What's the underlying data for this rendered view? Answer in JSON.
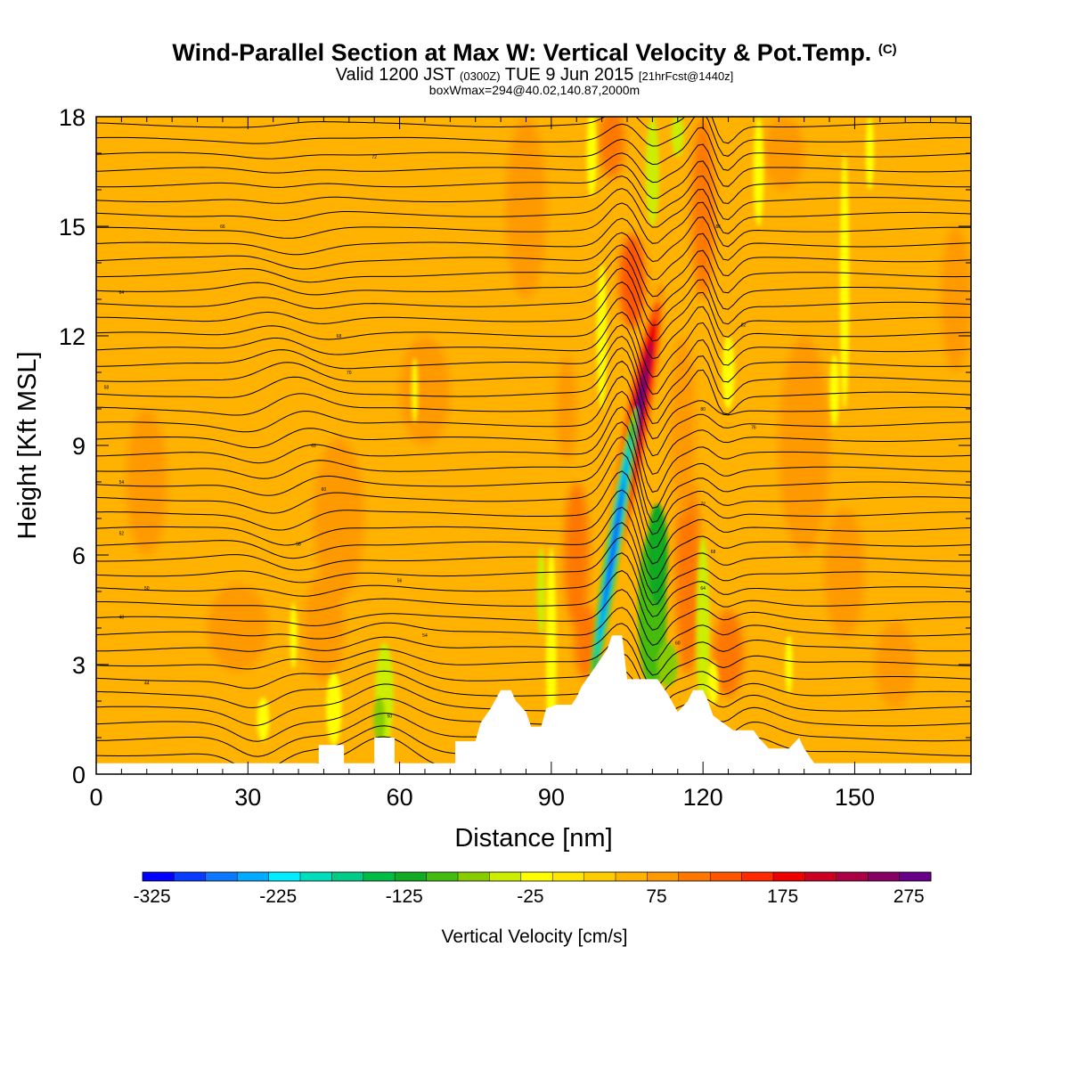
{
  "title": {
    "main": "Wind-Parallel Section at Max W: Vertical Velocity & Pot.Temp.",
    "main_suffix": "(C)",
    "valid_prefix": "Valid 1200 JST",
    "valid_utc": "(0300Z)",
    "valid_date": "TUE 9 Jun 2015",
    "valid_fcst": "[21hrFcst@1440z]",
    "box_info": "boxWmax=294@40.02,140.87,2000m"
  },
  "chart_data": {
    "type": "heatmap",
    "xlabel": "Distance [nm]",
    "ylabel": "Height [Kft MSL]",
    "xlim": [
      0,
      173
    ],
    "ylim": [
      0,
      18
    ],
    "xticks": [
      0,
      30,
      60,
      90,
      120,
      150
    ],
    "yticks": [
      0,
      3,
      6,
      9,
      12,
      15,
      18
    ],
    "colorbar": {
      "label": "Vertical Velocity [cm/s]",
      "ticks": [
        -325,
        -225,
        -125,
        -25,
        75,
        175,
        275
      ],
      "colors": [
        "#0000ff",
        "#0a3cff",
        "#0a78ff",
        "#00aaff",
        "#00eeff",
        "#00ddbb",
        "#00cc88",
        "#00bb44",
        "#11aa22",
        "#44bb11",
        "#88cc00",
        "#ccee00",
        "#ffff00",
        "#ffe600",
        "#ffcc00",
        "#ffb300",
        "#ff9900",
        "#ff7700",
        "#ff5500",
        "#ff2a00",
        "#ee0000",
        "#cc0022",
        "#aa0044",
        "#880066",
        "#660088"
      ]
    },
    "background_value": 25,
    "terrain_kft": [
      [
        0,
        0.3
      ],
      [
        44,
        0.3
      ],
      [
        44,
        0.8
      ],
      [
        49,
        0.8
      ],
      [
        49,
        0.3
      ],
      [
        55,
        0.3
      ],
      [
        55,
        1.0
      ],
      [
        59,
        1.0
      ],
      [
        59,
        0.3
      ],
      [
        71,
        0.3
      ],
      [
        71,
        0.9
      ],
      [
        75,
        0.9
      ],
      [
        76,
        1.4
      ],
      [
        78,
        1.8
      ],
      [
        80,
        2.3
      ],
      [
        82,
        2.3
      ],
      [
        83,
        2.0
      ],
      [
        85,
        1.7
      ],
      [
        86,
        1.3
      ],
      [
        88,
        1.3
      ],
      [
        89,
        1.8
      ],
      [
        91,
        1.9
      ],
      [
        94,
        1.9
      ],
      [
        95,
        2.1
      ],
      [
        96,
        2.4
      ],
      [
        97,
        2.6
      ],
      [
        98,
        2.8
      ],
      [
        99,
        3.0
      ],
      [
        100,
        3.2
      ],
      [
        101,
        3.4
      ],
      [
        102,
        3.8
      ],
      [
        104,
        3.8
      ],
      [
        105,
        2.6
      ],
      [
        111,
        2.6
      ],
      [
        113,
        2.2
      ],
      [
        115,
        1.7
      ],
      [
        117,
        2.0
      ],
      [
        118,
        2.3
      ],
      [
        120,
        2.3
      ],
      [
        121,
        2.0
      ],
      [
        122,
        1.6
      ],
      [
        126,
        1.2
      ],
      [
        130,
        1.2
      ],
      [
        131,
        1.0
      ],
      [
        133,
        0.7
      ],
      [
        137,
        0.7
      ],
      [
        139,
        1.0
      ],
      [
        140,
        0.7
      ],
      [
        142,
        0.3
      ],
      [
        173,
        0.3
      ]
    ],
    "isentrope_labels": [
      {
        "x": 10,
        "y": 2.5,
        "text": "44"
      },
      {
        "x": 5,
        "y": 4.3,
        "text": "48"
      },
      {
        "x": 10,
        "y": 5.1,
        "text": "50"
      },
      {
        "x": 5,
        "y": 6.6,
        "text": "52"
      },
      {
        "x": 5,
        "y": 8.0,
        "text": "54"
      },
      {
        "x": 2,
        "y": 10.6,
        "text": "58"
      },
      {
        "x": 5,
        "y": 13.2,
        "text": "64"
      },
      {
        "x": 25,
        "y": 15.0,
        "text": "66"
      },
      {
        "x": 55,
        "y": 16.9,
        "text": "72"
      },
      {
        "x": 48,
        "y": 12.0,
        "text": "68"
      },
      {
        "x": 50,
        "y": 11.0,
        "text": "70"
      },
      {
        "x": 43,
        "y": 9.0,
        "text": "62"
      },
      {
        "x": 45,
        "y": 7.8,
        "text": "60"
      },
      {
        "x": 40,
        "y": 6.3,
        "text": "58"
      },
      {
        "x": 60,
        "y": 5.3,
        "text": "56"
      },
      {
        "x": 65,
        "y": 3.8,
        "text": "54"
      },
      {
        "x": 58,
        "y": 1.6,
        "text": "50"
      },
      {
        "x": 120,
        "y": 10.0,
        "text": "80"
      },
      {
        "x": 128,
        "y": 12.3,
        "text": "82"
      },
      {
        "x": 123,
        "y": 15.0,
        "text": "86"
      },
      {
        "x": 130,
        "y": 9.5,
        "text": "76"
      },
      {
        "x": 120,
        "y": 7.4,
        "text": "72"
      },
      {
        "x": 122,
        "y": 6.1,
        "text": "68"
      },
      {
        "x": 120,
        "y": 5.1,
        "text": "64"
      },
      {
        "x": 115,
        "y": 3.6,
        "text": "60"
      }
    ]
  }
}
